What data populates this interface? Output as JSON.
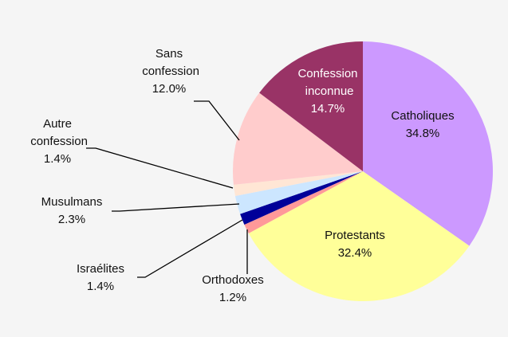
{
  "chart_data": {
    "type": "pie",
    "categories": [
      "Catholiques",
      "Protestants",
      "Orthodoxes",
      "Israélites",
      "Musulmans",
      "Autre confession",
      "Sans confession",
      "Confession inconnue"
    ],
    "values": [
      34.8,
      32.4,
      1.2,
      1.4,
      2.3,
      1.4,
      12.0,
      14.7
    ],
    "value_labels": [
      "34.8%",
      "32.4%",
      "1.2%",
      "1.4%",
      "2.3%",
      "1.4%",
      "12.0%",
      "14.7%"
    ],
    "colors": [
      "#cc99ff",
      "#ffff99",
      "#ff9999",
      "#000099",
      "#cce6ff",
      "#ffe6d5",
      "#ffcccc",
      "#993366"
    ]
  }
}
